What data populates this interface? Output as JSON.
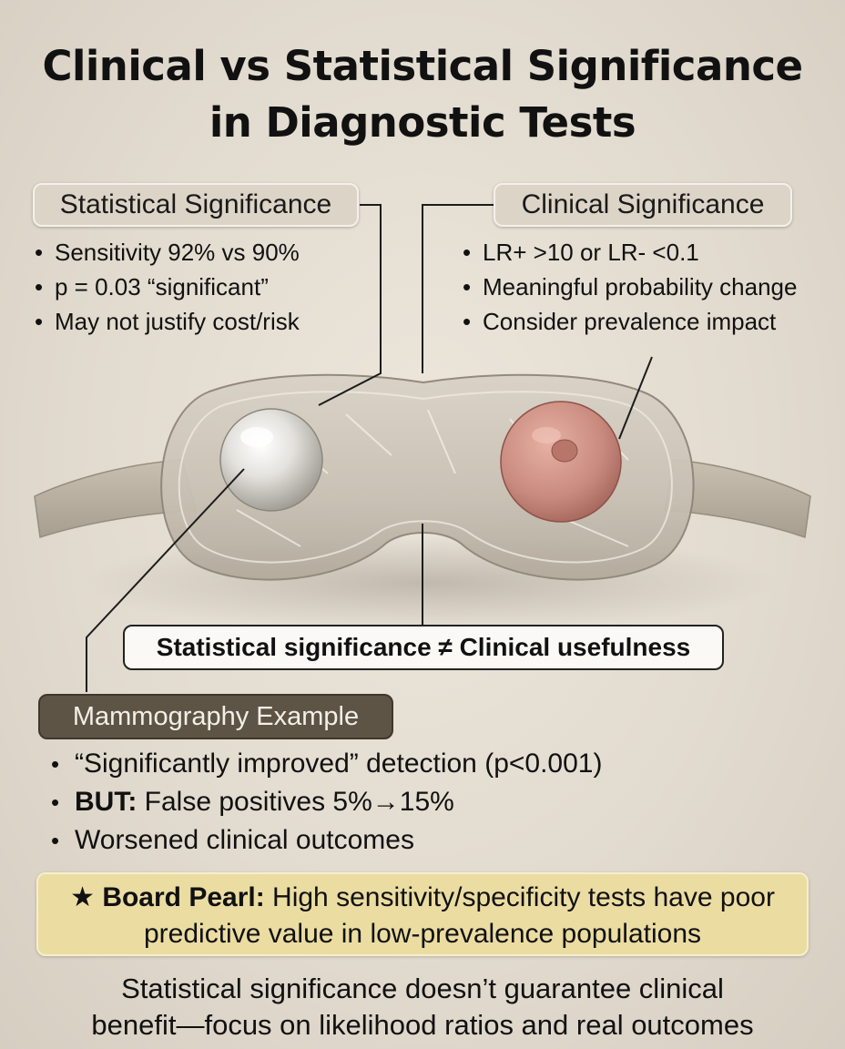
{
  "title_line1": "Clinical vs Statistical Significance",
  "title_line2": "in Diagnostic Tests",
  "statistical": {
    "heading": "Statistical Significance",
    "bullets": [
      "Sensitivity 92% vs 90%",
      "p = 0.03 “significant”",
      "May not justify cost/risk"
    ]
  },
  "clinical": {
    "heading": "Clinical Significance",
    "bullets": [
      "LR+ >10 or LR- <0.1",
      "Meaningful probability change",
      "Consider prevalence impact"
    ]
  },
  "center_banner": "Statistical significance ≠ Clinical usefulness",
  "mammography": {
    "heading": "Mammography Example",
    "bullet1": "“Significantly improved” detection (p<0.001)",
    "bullet2_bold": "BUT:",
    "bullet2_rest": " False positives 5%→15%",
    "bullet3": "Worsened clinical outcomes"
  },
  "pearl": {
    "star": "★",
    "label": "Board Pearl:",
    "text": " High sensitivity/specificity tests have poor predictive value in low-prevalence populations"
  },
  "footer_line1": "Statistical significance doesn’t guarantee clinical",
  "footer_line2": "benefit—focus on likelihood ratios and real outcomes",
  "colors": {
    "background": "#e6e0d5",
    "dark_pill": "#5e5446",
    "pearl_box": "#ebdca2",
    "tissue": "#c98a7e"
  }
}
